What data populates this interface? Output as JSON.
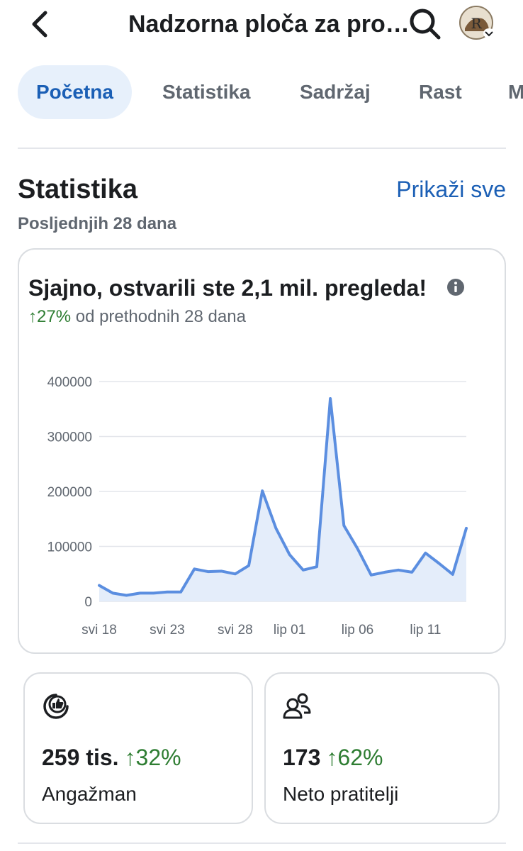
{
  "header": {
    "title": "Nadzorna ploča za pro…",
    "icons": {
      "back": "chevron-left-icon",
      "search": "search-icon",
      "avatar": "avatar",
      "avatar_badge": "chevron-down-icon"
    }
  },
  "tabs": [
    {
      "label": "Početna",
      "active": true
    },
    {
      "label": "Statistika",
      "active": false
    },
    {
      "label": "Sadržaj",
      "active": false
    },
    {
      "label": "Rast",
      "active": false
    },
    {
      "label": "M",
      "active": false
    }
  ],
  "insights": {
    "title": "Statistika",
    "see_all": "Prikaži sve",
    "period": "Posljednjih 28 dana"
  },
  "summary": {
    "headline": "Sjajno, ostvarili ste 2,1 mil. pregleda!",
    "change_arrow": "↑",
    "change_value": "27%",
    "change_text": " od prethodnih 28 dana"
  },
  "chart_data": {
    "type": "area",
    "x_ticks": [
      "svi 18",
      "svi 23",
      "svi 28",
      "lip 01",
      "lip 06",
      "lip 11"
    ],
    "x_tick_index": [
      0,
      5,
      10,
      14,
      19,
      24
    ],
    "y_ticks": [
      "400000",
      "300000",
      "200000",
      "100000",
      "0"
    ],
    "y_tick_values": [
      400000,
      300000,
      200000,
      100000,
      0
    ],
    "ylim": [
      0,
      400000
    ],
    "grid": true,
    "values": [
      29000,
      15000,
      11000,
      15000,
      15000,
      17000,
      17000,
      59000,
      54000,
      55000,
      50000,
      65000,
      201000,
      133000,
      85000,
      57000,
      63000,
      369000,
      138000,
      96000,
      48000,
      53000,
      57000,
      53000,
      88000,
      69000,
      49000,
      133000
    ],
    "line_color": "#5b8ee0",
    "fill_color": "#e4edfa"
  },
  "stats": [
    {
      "icon": "engagement-icon",
      "value": "259 tis.",
      "arrow": "↑",
      "delta": "32%",
      "label": "Angažman"
    },
    {
      "icon": "followers-icon",
      "value": "173",
      "arrow": "↑",
      "delta": "62%",
      "label": "Neto pratitelji"
    }
  ],
  "colors": {
    "accent": "#1b5fb5",
    "positive": "#2e7d32",
    "tab_active_bg": "#e7f0fb"
  }
}
